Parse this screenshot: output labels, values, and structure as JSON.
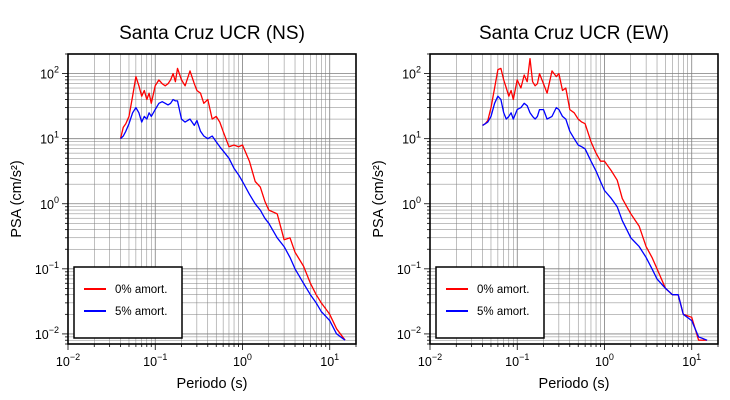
{
  "chart_data": [
    {
      "type": "line",
      "title": "Santa Cruz UCR (NS)",
      "xlabel": "Periodo (s)",
      "ylabel": "PSA (cm/s²)",
      "xscale": "log",
      "yscale": "log",
      "xlim": [
        0.01,
        20
      ],
      "ylim": [
        0.007,
        200
      ],
      "x_ticks": [
        {
          "base": "10",
          "exp": "−2"
        },
        {
          "base": "10",
          "exp": "−1"
        },
        {
          "base": "10",
          "exp": "0"
        },
        {
          "base": "10",
          "exp": "1"
        }
      ],
      "y_ticks": [
        {
          "base": "10",
          "exp": "−2"
        },
        {
          "base": "10",
          "exp": "−1"
        },
        {
          "base": "10",
          "exp": "0"
        },
        {
          "base": "10",
          "exp": "1"
        },
        {
          "base": "10",
          "exp": "2"
        }
      ],
      "grid": true,
      "legend_position": "bottom-left",
      "series": [
        {
          "name": "0% amort.",
          "color": "#ff0000",
          "x": [
            0.04,
            0.043,
            0.046,
            0.05,
            0.055,
            0.06,
            0.065,
            0.07,
            0.075,
            0.08,
            0.085,
            0.09,
            0.1,
            0.11,
            0.12,
            0.13,
            0.14,
            0.15,
            0.16,
            0.17,
            0.18,
            0.2,
            0.22,
            0.25,
            0.28,
            0.3,
            0.33,
            0.36,
            0.4,
            0.45,
            0.5,
            0.55,
            0.6,
            0.7,
            0.8,
            0.9,
            1.0,
            1.2,
            1.4,
            1.6,
            1.8,
            2.0,
            2.5,
            3.0,
            3.5,
            4.0,
            5.0,
            6.0,
            7.0,
            8.0,
            10.0,
            12.0,
            15.0
          ],
          "values": [
            10,
            15,
            17,
            22,
            45,
            90,
            65,
            45,
            55,
            40,
            50,
            35,
            65,
            80,
            70,
            65,
            70,
            80,
            100,
            75,
            120,
            80,
            65,
            110,
            70,
            55,
            50,
            35,
            40,
            20,
            22,
            18,
            13,
            7.5,
            8,
            7.5,
            8,
            4.5,
            2.2,
            1.8,
            1.1,
            0.8,
            0.7,
            0.28,
            0.3,
            0.18,
            0.11,
            0.06,
            0.04,
            0.03,
            0.02,
            0.012,
            0.008
          ]
        },
        {
          "name": "5% amort.",
          "color": "#0000ff",
          "x": [
            0.04,
            0.043,
            0.046,
            0.05,
            0.055,
            0.06,
            0.065,
            0.07,
            0.075,
            0.08,
            0.085,
            0.09,
            0.1,
            0.11,
            0.12,
            0.13,
            0.14,
            0.15,
            0.16,
            0.17,
            0.18,
            0.2,
            0.22,
            0.25,
            0.28,
            0.3,
            0.33,
            0.36,
            0.4,
            0.45,
            0.5,
            0.55,
            0.6,
            0.7,
            0.8,
            0.9,
            1.0,
            1.2,
            1.4,
            1.6,
            1.8,
            2.0,
            2.5,
            3.0,
            3.5,
            4.0,
            5.0,
            6.0,
            7.0,
            8.0,
            10.0,
            12.0,
            15.0
          ],
          "values": [
            10,
            11,
            13,
            17,
            25,
            30,
            25,
            18,
            22,
            20,
            25,
            22,
            28,
            35,
            37,
            35,
            33,
            35,
            40,
            38,
            38,
            20,
            18,
            20,
            16,
            19,
            13,
            11,
            10,
            11,
            9,
            7.5,
            6.5,
            5,
            3.5,
            2.8,
            2.2,
            1.4,
            1.0,
            0.8,
            0.6,
            0.5,
            0.3,
            0.22,
            0.15,
            0.1,
            0.06,
            0.04,
            0.03,
            0.022,
            0.016,
            0.01,
            0.008
          ]
        }
      ]
    },
    {
      "type": "line",
      "title": "Santa Cruz UCR (EW)",
      "xlabel": "Periodo (s)",
      "ylabel": "PSA (cm/s²)",
      "xscale": "log",
      "yscale": "log",
      "xlim": [
        0.01,
        20
      ],
      "ylim": [
        0.007,
        200
      ],
      "x_ticks": [
        {
          "base": "10",
          "exp": "−2"
        },
        {
          "base": "10",
          "exp": "−1"
        },
        {
          "base": "10",
          "exp": "0"
        },
        {
          "base": "10",
          "exp": "1"
        }
      ],
      "y_ticks": [
        {
          "base": "10",
          "exp": "−2"
        },
        {
          "base": "10",
          "exp": "−1"
        },
        {
          "base": "10",
          "exp": "0"
        },
        {
          "base": "10",
          "exp": "1"
        },
        {
          "base": "10",
          "exp": "2"
        }
      ],
      "grid": true,
      "legend_position": "bottom-left",
      "series": [
        {
          "name": "0% amort.",
          "color": "#ff0000",
          "x": [
            0.04,
            0.043,
            0.046,
            0.05,
            0.055,
            0.06,
            0.065,
            0.07,
            0.075,
            0.08,
            0.085,
            0.09,
            0.1,
            0.11,
            0.12,
            0.13,
            0.14,
            0.15,
            0.16,
            0.17,
            0.18,
            0.2,
            0.22,
            0.25,
            0.28,
            0.3,
            0.33,
            0.36,
            0.4,
            0.45,
            0.5,
            0.55,
            0.6,
            0.7,
            0.8,
            0.9,
            1.0,
            1.2,
            1.4,
            1.6,
            1.8,
            2.0,
            2.5,
            3.0,
            3.5,
            4.0,
            5.0,
            6.0,
            7.0,
            8.0,
            10.0,
            12.0,
            15.0
          ],
          "values": [
            16,
            17,
            19,
            30,
            60,
            115,
            120,
            80,
            60,
            45,
            55,
            40,
            80,
            60,
            95,
            75,
            170,
            75,
            65,
            70,
            100,
            70,
            50,
            110,
            90,
            100,
            55,
            60,
            28,
            25,
            20,
            18,
            17,
            9,
            6,
            4.5,
            4.5,
            3.2,
            2.3,
            1.2,
            0.9,
            0.7,
            0.45,
            0.22,
            0.15,
            0.1,
            0.05,
            0.04,
            0.04,
            0.02,
            0.018,
            0.008,
            0.008
          ]
        },
        {
          "name": "5% amort.",
          "color": "#0000ff",
          "x": [
            0.04,
            0.043,
            0.046,
            0.05,
            0.055,
            0.06,
            0.065,
            0.07,
            0.075,
            0.08,
            0.085,
            0.09,
            0.1,
            0.11,
            0.12,
            0.13,
            0.14,
            0.15,
            0.16,
            0.17,
            0.18,
            0.2,
            0.22,
            0.25,
            0.28,
            0.3,
            0.33,
            0.36,
            0.4,
            0.45,
            0.5,
            0.55,
            0.6,
            0.7,
            0.8,
            0.9,
            1.0,
            1.2,
            1.4,
            1.6,
            1.8,
            2.0,
            2.5,
            3.0,
            3.5,
            4.0,
            5.0,
            6.0,
            7.0,
            8.0,
            10.0,
            12.0,
            15.0
          ],
          "values": [
            16,
            17,
            18,
            22,
            35,
            45,
            40,
            25,
            20,
            22,
            25,
            20,
            28,
            30,
            35,
            32,
            25,
            22,
            20,
            22,
            28,
            28,
            20,
            22,
            30,
            28,
            22,
            20,
            13,
            10,
            8,
            7.5,
            7,
            4.5,
            3.2,
            2.2,
            1.6,
            1.2,
            0.9,
            0.55,
            0.4,
            0.3,
            0.22,
            0.15,
            0.1,
            0.07,
            0.05,
            0.04,
            0.04,
            0.02,
            0.016,
            0.009,
            0.008
          ]
        }
      ]
    }
  ]
}
